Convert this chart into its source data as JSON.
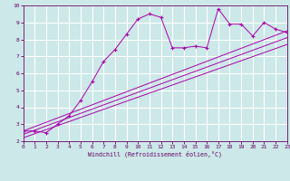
{
  "xlabel": "Windchill (Refroidissement éolien,°C)",
  "xlim": [
    0,
    23
  ],
  "ylim": [
    2,
    10
  ],
  "xticks": [
    0,
    1,
    2,
    3,
    4,
    5,
    6,
    7,
    8,
    9,
    10,
    11,
    12,
    13,
    14,
    15,
    16,
    17,
    18,
    19,
    20,
    21,
    22,
    23
  ],
  "yticks": [
    2,
    3,
    4,
    5,
    6,
    7,
    8,
    9,
    10
  ],
  "bg_color": "#cce8e8",
  "line_color": "#aa00aa",
  "grid_color": "#ffffff",
  "series1_x": [
    0,
    1,
    2,
    3,
    4,
    5,
    6,
    7,
    8,
    9,
    10,
    11,
    12,
    13,
    14,
    15,
    16,
    17,
    18,
    19,
    20,
    21,
    22,
    23
  ],
  "series1_y": [
    2.6,
    2.6,
    2.5,
    3.0,
    3.5,
    4.4,
    5.5,
    6.7,
    7.4,
    8.3,
    9.2,
    9.5,
    9.3,
    7.5,
    7.5,
    7.6,
    7.5,
    9.8,
    8.9,
    8.9,
    8.2,
    9.0,
    8.6,
    8.4
  ],
  "series2_x": [
    0,
    23
  ],
  "series2_y": [
    2.6,
    8.5
  ],
  "series3_x": [
    0,
    23
  ],
  "series3_y": [
    2.4,
    8.1
  ],
  "series4_x": [
    0,
    23
  ],
  "series4_y": [
    2.2,
    7.7
  ],
  "tick_color": "#660066",
  "tick_fontsize": 4.5,
  "xlabel_fontsize": 4.8
}
